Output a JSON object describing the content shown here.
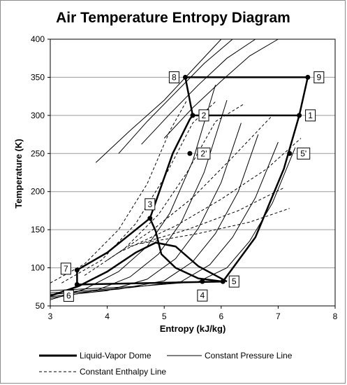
{
  "chart_data": {
    "type": "line",
    "title": "Air Temperature Entropy Diagram",
    "xlabel": "Entropy (kJ/kg)",
    "ylabel": "Temperature (K)",
    "xlim": [
      3,
      8
    ],
    "ylim": [
      50,
      400
    ],
    "xticks": [
      3,
      4,
      5,
      6,
      7,
      8
    ],
    "yticks": [
      50,
      100,
      150,
      200,
      250,
      300,
      350,
      400
    ],
    "grid": "horizontal",
    "legend_position": "bottom",
    "legend": [
      {
        "name": "Liquid-Vapor Dome",
        "style": "thick"
      },
      {
        "name": "Constant Pressure Line",
        "style": "solid"
      },
      {
        "name": "Constant Enthalpy Line",
        "style": "dashed"
      }
    ],
    "dome": {
      "x": [
        3.0,
        3.5,
        4.0,
        4.5,
        4.85,
        5.2,
        5.6,
        6.1
      ],
      "y": [
        63,
        76,
        95,
        120,
        133,
        128,
        102,
        82
      ]
    },
    "cycle_line": {
      "x": [
        3.47,
        3.47,
        4.0,
        4.75,
        5.15,
        5.45,
        5.5,
        5.37,
        7.52
      ],
      "y": [
        78,
        97,
        120,
        165,
        250,
        295,
        300,
        350,
        350
      ]
    },
    "cycle_line_b": {
      "x": [
        4.75,
        4.85,
        4.95,
        5.2,
        5.6,
        6.03
      ],
      "y": [
        165,
        148,
        118,
        100,
        86,
        82
      ]
    },
    "cycle_line_c": {
      "x": [
        5.5,
        7.37
      ],
      "y": [
        300,
        300
      ]
    },
    "cycle_line_d": {
      "x": [
        6.03,
        6.6,
        7.1,
        7.37,
        7.52
      ],
      "y": [
        82,
        140,
        230,
        300,
        350
      ]
    },
    "cycle_line_e": {
      "x": [
        3.47,
        6.03
      ],
      "y": [
        78,
        82
      ]
    },
    "pressure_lines": [
      {
        "x": [
          3.0,
          3.6,
          4.2,
          4.7,
          5.1,
          5.5,
          5.9
        ],
        "y": [
          58,
          72,
          95,
          128,
          172,
          240,
          340
        ]
      },
      {
        "x": [
          3.0,
          3.8,
          4.4,
          4.9,
          5.3,
          5.7,
          6.1
        ],
        "y": [
          60,
          70,
          88,
          118,
          160,
          225,
          320
        ]
      },
      {
        "x": [
          3.0,
          4.0,
          4.7,
          5.2,
          5.6,
          6.0,
          6.35
        ],
        "y": [
          62,
          70,
          85,
          112,
          152,
          212,
          290
        ]
      },
      {
        "x": [
          3.0,
          4.2,
          5.0,
          5.5,
          5.9,
          6.3,
          6.65
        ],
        "y": [
          65,
          72,
          83,
          108,
          145,
          200,
          275
        ]
      },
      {
        "x": [
          3.0,
          4.4,
          5.3,
          5.8,
          6.2,
          6.6,
          7.0
        ],
        "y": [
          67,
          74,
          82,
          104,
          140,
          192,
          265
        ]
      },
      {
        "x": [
          3.0,
          4.6,
          5.6,
          6.1,
          6.5,
          6.9,
          7.3
        ],
        "y": [
          70,
          76,
          82,
          100,
          135,
          185,
          258
        ]
      },
      {
        "x": [
          3.8,
          4.4,
          5.0,
          5.5,
          6.0
        ],
        "y": [
          238,
          280,
          320,
          360,
          400
        ]
      },
      {
        "x": [
          4.2,
          4.7,
          5.2,
          5.7,
          6.2
        ],
        "y": [
          250,
          292,
          330,
          368,
          400
        ]
      },
      {
        "x": [
          4.6,
          5.1,
          5.6,
          6.1,
          6.6
        ],
        "y": [
          262,
          302,
          340,
          375,
          400
        ]
      },
      {
        "x": [
          5.0,
          5.5,
          6.0,
          6.5,
          7.0
        ],
        "y": [
          270,
          310,
          345,
          378,
          400
        ]
      }
    ],
    "enthalpy_lines": [
      {
        "x": [
          3.0,
          3.6,
          4.2,
          4.7,
          5.1,
          5.4
        ],
        "y": [
          80,
          105,
          150,
          210,
          280,
          320
        ]
      },
      {
        "x": [
          3.2,
          3.9,
          4.5,
          5.0,
          5.5,
          5.9
        ],
        "y": [
          80,
          110,
          158,
          218,
          290,
          318
        ]
      },
      {
        "x": [
          3.6,
          4.3,
          4.9,
          5.4,
          5.9,
          6.4
        ],
        "y": [
          90,
          125,
          170,
          225,
          292,
          315
        ]
      },
      {
        "x": [
          4.0,
          4.8,
          5.5,
          6.2,
          6.9
        ],
        "y": [
          110,
          150,
          192,
          245,
          300
        ]
      },
      {
        "x": [
          4.2,
          5.2,
          6.0,
          6.8,
          7.4
        ],
        "y": [
          120,
          155,
          190,
          230,
          270
        ]
      },
      {
        "x": [
          4.4,
          5.4,
          6.3,
          7.1
        ],
        "y": [
          128,
          150,
          175,
          205
        ]
      },
      {
        "x": [
          4.6,
          5.6,
          6.5,
          7.2
        ],
        "y": [
          132,
          145,
          160,
          178
        ]
      }
    ],
    "points": [
      {
        "label": "1",
        "x": 7.37,
        "y": 300
      },
      {
        "label": "2",
        "x": 5.5,
        "y": 300
      },
      {
        "label": "2'",
        "x": 5.45,
        "y": 250
      },
      {
        "label": "3",
        "x": 4.75,
        "y": 165
      },
      {
        "label": "4",
        "x": 5.67,
        "y": 82
      },
      {
        "label": "5",
        "x": 6.03,
        "y": 82
      },
      {
        "label": "5'",
        "x": 7.2,
        "y": 250
      },
      {
        "label": "6",
        "x": 3.47,
        "y": 78
      },
      {
        "label": "7",
        "x": 3.47,
        "y": 97
      },
      {
        "label": "8",
        "x": 5.37,
        "y": 350
      },
      {
        "label": "9",
        "x": 7.52,
        "y": 350
      }
    ]
  }
}
